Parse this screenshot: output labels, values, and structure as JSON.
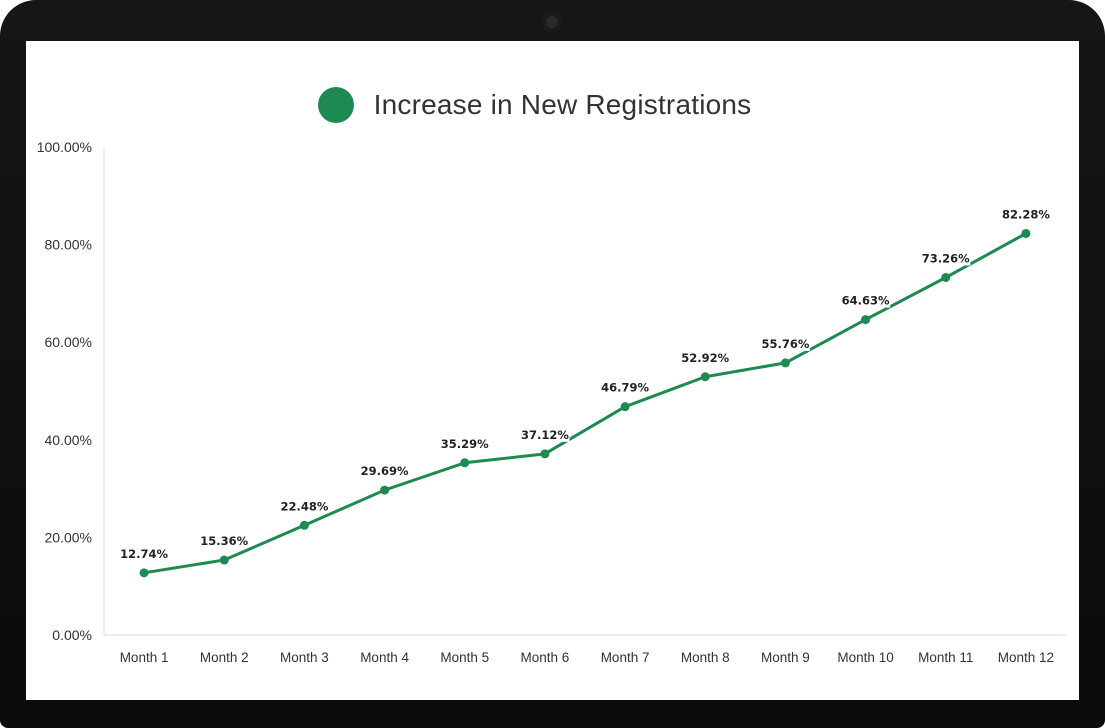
{
  "chart_data": {
    "type": "line",
    "title": "",
    "xlabel": "",
    "ylabel": "",
    "categories": [
      "Month 1",
      "Month 2",
      "Month 3",
      "Month 4",
      "Month 5",
      "Month 6",
      "Month 7",
      "Month 8",
      "Month 9",
      "Month 10",
      "Month 11",
      "Month 12"
    ],
    "series": [
      {
        "name": "Increase in New Registrations",
        "values": [
          12.74,
          15.36,
          22.48,
          29.69,
          35.29,
          37.12,
          46.79,
          52.92,
          55.76,
          64.63,
          73.26,
          82.28
        ],
        "data_labels": [
          "12.74%",
          "15.36%",
          "22.48%",
          "29.69%",
          "35.29%",
          "37.12%",
          "46.79%",
          "52.92%",
          "55.76%",
          "64.63%",
          "73.26%",
          "82.28%"
        ],
        "color": "#1e8a52"
      }
    ],
    "ylim": [
      0,
      100
    ],
    "yticks": [
      0,
      20,
      40,
      60,
      80,
      100
    ],
    "ytick_labels": [
      "0.00%",
      "20.00%",
      "40.00%",
      "60.00%",
      "80.00%",
      "100.00%"
    ],
    "grid": false,
    "legend_position": "top-center"
  }
}
